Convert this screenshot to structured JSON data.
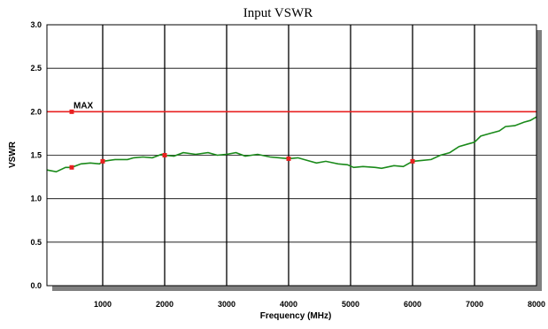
{
  "chart_data": {
    "type": "line",
    "title": "Input VSWR",
    "xlabel": "Frequency (MHz)",
    "ylabel": "VSWR",
    "xlim": [
      100,
      8000
    ],
    "ylim": [
      0.0,
      3.0
    ],
    "x_ticks": [
      1000,
      2000,
      3000,
      4000,
      5000,
      6000,
      7000,
      8000
    ],
    "x_tick_labels": [
      "1000",
      "2000",
      "3000",
      "4000",
      "5000",
      "6000",
      "7000",
      "8000"
    ],
    "y_ticks": [
      0.0,
      0.5,
      1.0,
      1.5,
      2.0,
      2.5,
      3.0
    ],
    "y_tick_labels": [
      "0.0",
      "0.5",
      "1.0",
      "1.5",
      "2.0",
      "2.5",
      "3.0"
    ],
    "grid": true,
    "series": [
      {
        "color": "#1a8a1a",
        "x": [
          100,
          250,
          400,
          500,
          650,
          800,
          950,
          1000,
          1200,
          1400,
          1500,
          1650,
          1800,
          1950,
          2000,
          2150,
          2300,
          2500,
          2700,
          2850,
          3000,
          3150,
          3300,
          3500,
          3700,
          3850,
          4000,
          4150,
          4300,
          4450,
          4600,
          4800,
          4950,
          5050,
          5200,
          5400,
          5500,
          5700,
          5850,
          6000,
          6150,
          6300,
          6450,
          6600,
          6750,
          6900,
          7000,
          7100,
          7250,
          7400,
          7500,
          7650,
          7800,
          7900,
          8000
        ],
        "y": [
          1.33,
          1.31,
          1.36,
          1.36,
          1.4,
          1.41,
          1.4,
          1.43,
          1.45,
          1.45,
          1.47,
          1.48,
          1.47,
          1.51,
          1.5,
          1.49,
          1.53,
          1.51,
          1.53,
          1.5,
          1.51,
          1.53,
          1.49,
          1.51,
          1.48,
          1.47,
          1.46,
          1.47,
          1.44,
          1.41,
          1.43,
          1.4,
          1.39,
          1.36,
          1.37,
          1.36,
          1.35,
          1.38,
          1.37,
          1.43,
          1.44,
          1.45,
          1.5,
          1.53,
          1.6,
          1.63,
          1.65,
          1.72,
          1.75,
          1.78,
          1.83,
          1.84,
          1.88,
          1.9,
          1.94
        ]
      }
    ],
    "markers": {
      "color": "#e82020",
      "x": [
        500,
        1000,
        2000,
        4000,
        6000
      ],
      "y": [
        1.36,
        1.43,
        1.5,
        1.46,
        1.43
      ]
    },
    "limit_line": {
      "y": 2.0,
      "color": "#e82020"
    },
    "annotations": [
      {
        "text": "MAX",
        "x": 500,
        "y": 2.0
      }
    ]
  }
}
